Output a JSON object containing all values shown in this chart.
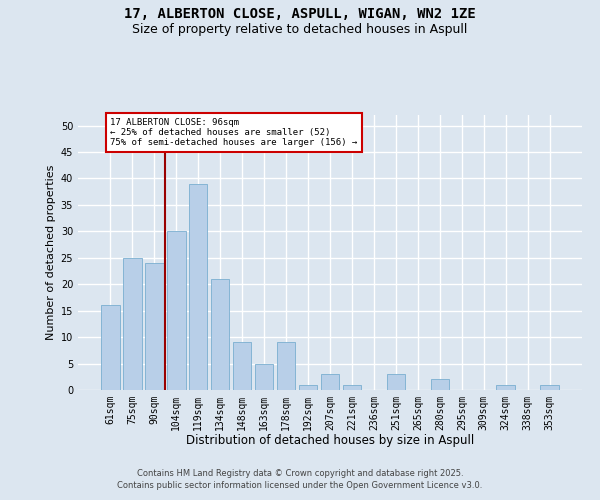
{
  "title1": "17, ALBERTON CLOSE, ASPULL, WIGAN, WN2 1ZE",
  "title2": "Size of property relative to detached houses in Aspull",
  "xlabel": "Distribution of detached houses by size in Aspull",
  "ylabel": "Number of detached properties",
  "bar_labels": [
    "61sqm",
    "75sqm",
    "90sqm",
    "104sqm",
    "119sqm",
    "134sqm",
    "148sqm",
    "163sqm",
    "178sqm",
    "192sqm",
    "207sqm",
    "221sqm",
    "236sqm",
    "251sqm",
    "265sqm",
    "280sqm",
    "295sqm",
    "309sqm",
    "324sqm",
    "338sqm",
    "353sqm"
  ],
  "bar_values": [
    16,
    25,
    24,
    30,
    39,
    21,
    9,
    5,
    9,
    1,
    3,
    1,
    0,
    3,
    0,
    2,
    0,
    0,
    1,
    0,
    1
  ],
  "bar_color": "#b8cfe8",
  "bar_edge_color": "#7aaed0",
  "background_color": "#dce6f0",
  "grid_color": "#ffffff",
  "vline_color": "#990000",
  "annotation_text": "17 ALBERTON CLOSE: 96sqm\n← 25% of detached houses are smaller (52)\n75% of semi-detached houses are larger (156) →",
  "annotation_box_facecolor": "#ffffff",
  "annotation_box_edgecolor": "#cc0000",
  "ylim": [
    0,
    52
  ],
  "yticks": [
    0,
    5,
    10,
    15,
    20,
    25,
    30,
    35,
    40,
    45,
    50
  ],
  "footer": "Contains HM Land Registry data © Crown copyright and database right 2025.\nContains public sector information licensed under the Open Government Licence v3.0.",
  "title1_fontsize": 10,
  "title2_fontsize": 9,
  "xlabel_fontsize": 8.5,
  "ylabel_fontsize": 8,
  "tick_fontsize": 7,
  "footer_fontsize": 6
}
